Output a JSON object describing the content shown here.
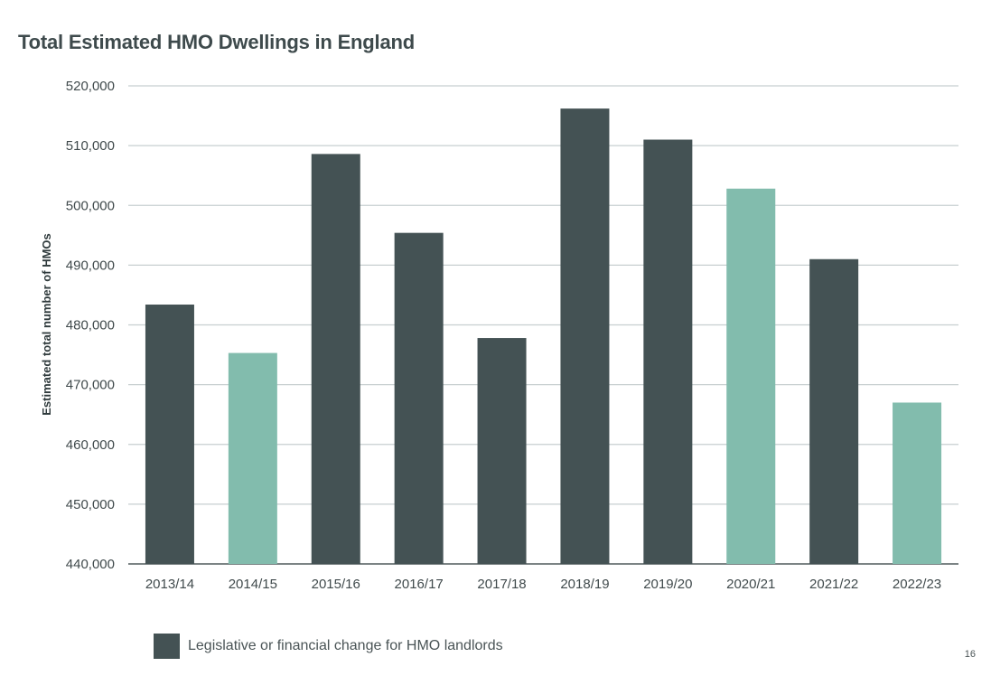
{
  "page": {
    "title": "Total Estimated HMO Dwellings in England",
    "page_number": "16"
  },
  "legend": {
    "label": "Legislative or financial change for HMO landlords",
    "color": "#445254"
  },
  "colors": {
    "dark": "#445254",
    "light": "#82bcad",
    "grid": "#c7cfd0",
    "axis": "#2f3a3c"
  },
  "chart_data": {
    "type": "bar",
    "title": "Total Estimated HMO Dwellings in England",
    "xlabel": "",
    "ylabel": "Estimated total number of HMOs",
    "ylim": [
      440000,
      520000
    ],
    "yticks": [
      440000,
      450000,
      460000,
      470000,
      480000,
      490000,
      500000,
      510000,
      520000
    ],
    "ytick_labels": [
      "440,000",
      "450,000",
      "460,000",
      "470,000",
      "480,000",
      "490,000",
      "500,000",
      "510,000",
      "520,000"
    ],
    "categories": [
      "2013/14",
      "2014/15",
      "2015/16",
      "2016/17",
      "2017/18",
      "2018/19",
      "2019/20",
      "2020/21",
      "2021/22",
      "2022/23"
    ],
    "values": [
      483400,
      475300,
      508600,
      495400,
      477800,
      516200,
      511000,
      502800,
      491000,
      467000
    ],
    "legislative_change": [
      true,
      false,
      true,
      true,
      true,
      true,
      true,
      false,
      true,
      false
    ],
    "grid": true,
    "legend_position": "bottom-left"
  }
}
